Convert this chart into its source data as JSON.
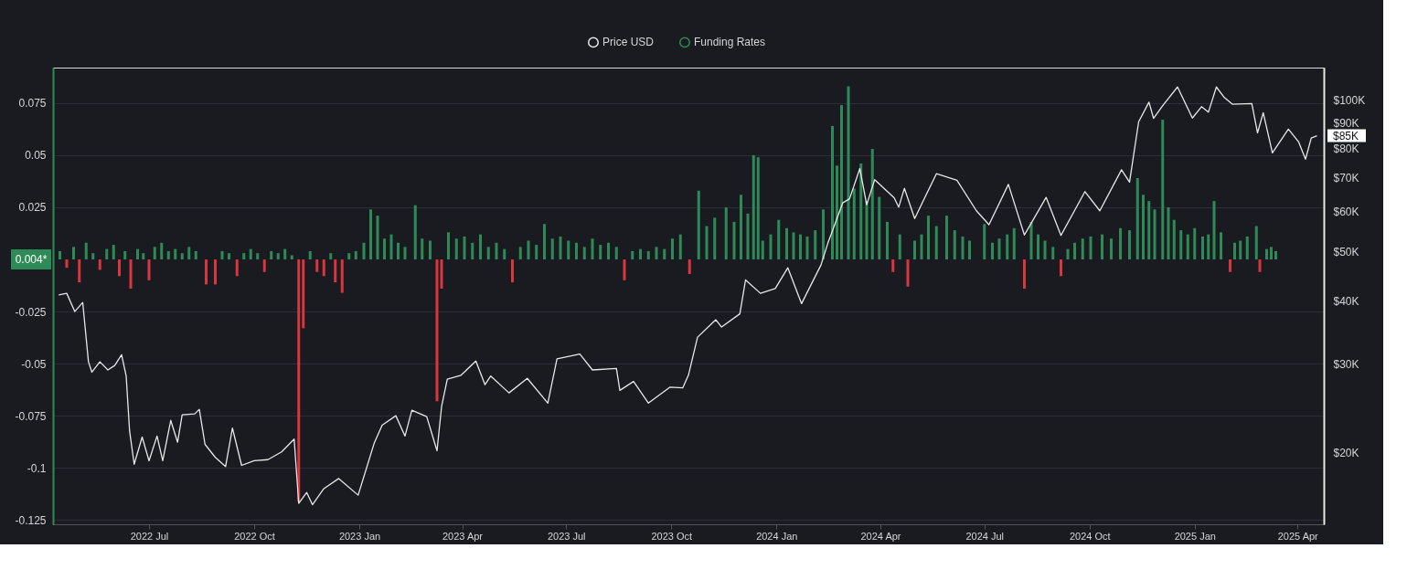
{
  "chart_data": {
    "type": "bar",
    "legend": "top",
    "grid": "y",
    "log": "y2",
    "annotations": [
      "0.004*",
      "$85K"
    ],
    "xlim": [
      "2022-04-12",
      "2025-04-20"
    ],
    "xticks": [
      {
        "value": "2022-07-01",
        "label": "2022 Jul"
      },
      {
        "value": "2022-10-01",
        "label": "2022 Oct"
      },
      {
        "value": "2023-01-01",
        "label": "2023 Jan"
      },
      {
        "value": "2023-04-01",
        "label": "2023 Apr"
      },
      {
        "value": "2023-07-01",
        "label": "2023 Jul"
      },
      {
        "value": "2023-10-01",
        "label": "2023 Oct"
      },
      {
        "value": "2024-01-01",
        "label": "2024 Jan"
      },
      {
        "value": "2024-04-01",
        "label": "2024 Apr"
      },
      {
        "value": "2024-07-01",
        "label": "2024 Jul"
      },
      {
        "value": "2024-10-01",
        "label": "2024 Oct"
      },
      {
        "value": "2025-01-01",
        "label": "2025 Jan"
      },
      {
        "value": "2025-04-01",
        "label": "2025 Apr"
      }
    ],
    "ylim": [
      -0.127,
      0.092
    ],
    "yticks": [
      -0.125,
      -0.1,
      -0.075,
      -0.05,
      -0.025,
      0.025,
      0.05,
      0.075
    ],
    "y2lim": [
      14450,
      115800
    ],
    "y2ticks": [
      {
        "value": 20000,
        "label": "$20K"
      },
      {
        "value": 30000,
        "label": "$30K"
      },
      {
        "value": 40000,
        "label": "$40K"
      },
      {
        "value": 50000,
        "label": "$50K"
      },
      {
        "value": 60000,
        "label": "$60K"
      },
      {
        "value": 70000,
        "label": "$70K"
      },
      {
        "value": 80000,
        "label": "$80K"
      },
      {
        "value": 90000,
        "label": "$90K"
      },
      {
        "value": 100000,
        "label": "$100K"
      }
    ],
    "series": [
      {
        "name": "Price USD",
        "type": "line",
        "axis": "y2",
        "color": "#e8e8e8",
        "x": [
          "2022-04-13",
          "2022-04-20",
          "2022-04-27",
          "2022-05-04",
          "2022-05-09",
          "2022-05-12",
          "2022-05-19",
          "2022-05-26",
          "2022-06-01",
          "2022-06-07",
          "2022-06-11",
          "2022-06-14",
          "2022-06-18",
          "2022-06-25",
          "2022-07-01",
          "2022-07-08",
          "2022-07-13",
          "2022-07-20",
          "2022-07-26",
          "2022-07-30",
          "2022-08-10",
          "2022-08-14",
          "2022-08-19",
          "2022-08-28",
          "2022-09-06",
          "2022-09-12",
          "2022-09-20",
          "2022-10-01",
          "2022-10-13",
          "2022-10-25",
          "2022-11-05",
          "2022-11-09",
          "2022-11-16",
          "2022-11-21",
          "2022-12-01",
          "2022-12-14",
          "2022-12-31",
          "2023-01-14",
          "2023-01-21",
          "2023-02-02",
          "2023-02-10",
          "2023-02-16",
          "2023-03-01",
          "2023-03-10",
          "2023-03-14",
          "2023-03-19",
          "2023-03-31",
          "2023-04-13",
          "2023-04-21",
          "2023-04-26",
          "2023-05-12",
          "2023-05-28",
          "2023-06-15",
          "2023-06-23",
          "2023-07-13",
          "2023-07-24",
          "2023-08-14",
          "2023-08-17",
          "2023-08-29",
          "2023-09-11",
          "2023-09-30",
          "2023-10-11",
          "2023-10-16",
          "2023-10-24",
          "2023-11-09",
          "2023-11-14",
          "2023-11-30",
          "2023-12-05",
          "2023-12-18",
          "2023-12-31",
          "2024-01-11",
          "2024-01-23",
          "2024-02-09",
          "2024-02-15",
          "2024-02-28",
          "2024-03-05",
          "2024-03-14",
          "2024-03-20",
          "2024-03-27",
          "2024-04-13",
          "2024-04-17",
          "2024-04-22",
          "2024-05-01",
          "2024-05-20",
          "2024-06-07",
          "2024-06-24",
          "2024-07-05",
          "2024-07-22",
          "2024-08-05",
          "2024-08-24",
          "2024-09-06",
          "2024-09-27",
          "2024-10-10",
          "2024-10-29",
          "2024-11-05",
          "2024-11-13",
          "2024-11-22",
          "2024-11-26",
          "2024-12-05",
          "2024-12-17",
          "2024-12-30",
          "2025-01-07",
          "2025-01-13",
          "2025-01-20",
          "2025-01-27",
          "2025-02-03",
          "2025-02-20",
          "2025-02-25",
          "2025-03-02",
          "2025-03-10",
          "2025-03-24",
          "2025-04-02",
          "2025-04-08",
          "2025-04-13",
          "2025-04-18"
        ],
        "values": [
          41100,
          41400,
          38100,
          39700,
          30300,
          28900,
          30300,
          29200,
          29800,
          31300,
          28400,
          22100,
          19000,
          21500,
          19300,
          21600,
          19300,
          23200,
          21000,
          23800,
          23900,
          24400,
          20800,
          19600,
          18800,
          22400,
          18900,
          19300,
          19400,
          20100,
          21300,
          15900,
          16700,
          15800,
          17000,
          17800,
          16500,
          20900,
          22700,
          23700,
          21600,
          24300,
          23600,
          20200,
          24700,
          28000,
          28500,
          30400,
          27300,
          28400,
          26300,
          28100,
          25100,
          30700,
          31400,
          29200,
          29400,
          26600,
          27700,
          25100,
          27000,
          26900,
          28500,
          33900,
          36700,
          35500,
          37700,
          44000,
          41400,
          42300,
          46500,
          39500,
          47100,
          52000,
          62500,
          63700,
          73100,
          62000,
          69500,
          64000,
          61300,
          66800,
          58200,
          71400,
          69300,
          60300,
          56600,
          68000,
          54000,
          64100,
          53900,
          65800,
          60300,
          72700,
          68700,
          90500,
          98900,
          91900,
          98000,
          106000,
          92000,
          96900,
          94500,
          106000,
          101000,
          98000,
          98300,
          86000,
          94300,
          78500,
          87500,
          82500,
          76300,
          84000,
          84900
        ]
      },
      {
        "name": "Funding Rates",
        "color": "#2e8b57",
        "x": [
          "2022-04-14",
          "2022-04-26",
          "2022-05-07",
          "2022-05-13",
          "2022-05-25",
          "2022-05-31",
          "2022-06-10",
          "2022-06-21",
          "2022-06-26",
          "2022-07-06",
          "2022-07-12",
          "2022-07-18",
          "2022-07-24",
          "2022-07-30",
          "2022-08-05",
          "2022-08-11",
          "2022-09-03",
          "2022-09-09",
          "2022-09-22",
          "2022-09-28",
          "2022-10-04",
          "2022-10-16",
          "2022-10-22",
          "2022-10-28",
          "2022-11-03",
          "2022-11-19",
          "2022-12-07",
          "2022-12-23",
          "2022-12-29",
          "2023-01-05",
          "2023-01-11",
          "2023-01-17",
          "2023-01-23",
          "2023-01-29",
          "2023-02-04",
          "2023-02-10",
          "2023-02-19",
          "2023-02-25",
          "2023-03-04",
          "2023-03-20",
          "2023-03-27",
          "2023-04-03",
          "2023-04-10",
          "2023-04-17",
          "2023-04-24",
          "2023-05-01",
          "2023-05-08",
          "2023-05-22",
          "2023-05-29",
          "2023-06-05",
          "2023-06-12",
          "2023-06-19",
          "2023-06-26",
          "2023-07-03",
          "2023-07-10",
          "2023-07-17",
          "2023-07-24",
          "2023-07-31",
          "2023-08-07",
          "2023-08-14",
          "2023-08-28",
          "2023-09-04",
          "2023-09-11",
          "2023-09-18",
          "2023-09-25",
          "2023-10-02",
          "2023-10-09",
          "2023-10-25",
          "2023-11-01",
          "2023-11-08",
          "2023-11-18",
          "2023-11-25",
          "2023-12-01",
          "2023-12-07",
          "2023-12-12",
          "2023-12-16",
          "2023-12-20",
          "2023-12-27",
          "2024-01-03",
          "2024-01-10",
          "2024-01-16",
          "2024-01-22",
          "2024-01-28",
          "2024-02-04",
          "2024-02-11",
          "2024-02-19",
          "2024-02-23",
          "2024-02-27",
          "2024-03-04",
          "2024-03-09",
          "2024-03-15",
          "2024-03-20",
          "2024-03-25",
          "2024-03-31",
          "2024-04-07",
          "2024-04-18",
          "2024-05-01",
          "2024-05-07",
          "2024-05-13",
          "2024-05-20",
          "2024-05-29",
          "2024-06-05",
          "2024-06-12",
          "2024-06-18",
          "2024-07-01",
          "2024-07-08",
          "2024-07-14",
          "2024-07-21",
          "2024-07-27",
          "2024-08-11",
          "2024-08-17",
          "2024-08-23",
          "2024-08-30",
          "2024-09-12",
          "2024-09-18",
          "2024-09-25",
          "2024-10-02",
          "2024-10-12",
          "2024-10-20",
          "2024-10-28",
          "2024-11-05",
          "2024-11-12",
          "2024-11-17",
          "2024-11-22",
          "2024-11-27",
          "2024-12-04",
          "2024-12-09",
          "2024-12-14",
          "2024-12-20",
          "2024-12-26",
          "2025-01-01",
          "2025-01-08",
          "2025-01-13",
          "2025-01-18",
          "2025-01-24",
          "2025-02-05",
          "2025-02-10",
          "2025-02-16",
          "2025-02-24",
          "2025-03-05",
          "2025-03-09",
          "2025-03-13"
        ],
        "values": [
          0.004,
          0.006,
          0.008,
          0.003,
          0.005,
          0.007,
          0.004,
          0.005,
          0.003,
          0.006,
          0.008,
          0.004,
          0.005,
          0.003,
          0.006,
          0.004,
          0.004,
          0.003,
          0.003,
          0.005,
          0.003,
          0.004,
          0.003,
          0.005,
          0.002,
          0.004,
          0.003,
          0.003,
          0.004,
          0.008,
          0.024,
          0.021,
          0.01,
          0.012,
          0.008,
          0.006,
          0.026,
          0.01,
          0.009,
          0.013,
          0.01,
          0.011,
          0.008,
          0.012,
          0.006,
          0.008,
          0.005,
          0.006,
          0.009,
          0.007,
          0.017,
          0.01,
          0.011,
          0.009,
          0.008,
          0.006,
          0.01,
          0.007,
          0.008,
          0.006,
          0.004,
          0.005,
          0.004,
          0.006,
          0.005,
          0.01,
          0.012,
          0.033,
          0.016,
          0.02,
          0.025,
          0.018,
          0.031,
          0.022,
          0.05,
          0.049,
          0.009,
          0.012,
          0.019,
          0.015,
          0.013,
          0.012,
          0.011,
          0.014,
          0.024,
          0.064,
          0.045,
          0.074,
          0.083,
          0.034,
          0.046,
          0.028,
          0.053,
          0.03,
          0.018,
          0.012,
          0.009,
          0.012,
          0.021,
          0.016,
          0.021,
          0.014,
          0.011,
          0.009,
          0.017,
          0.008,
          0.01,
          0.012,
          0.015,
          0.018,
          0.012,
          0.009,
          0.006,
          0.005,
          0.008,
          0.01,
          0.011,
          0.012,
          0.01,
          0.015,
          0.014,
          0.039,
          0.031,
          0.028,
          0.024,
          0.067,
          0.025,
          0.019,
          0.014,
          0.012,
          0.015,
          0.011,
          0.012,
          0.028,
          0.013,
          0.008,
          0.009,
          0.011,
          0.016,
          0.005,
          0.006,
          0.004
        ]
      },
      {
        "color": "#d9363e",
        "x": [
          "2022-04-20",
          "2022-05-01",
          "2022-05-19",
          "2022-06-05",
          "2022-06-15",
          "2022-07-01",
          "2022-08-20",
          "2022-08-28",
          "2022-09-16",
          "2022-10-10",
          "2022-11-09",
          "2022-11-13",
          "2022-11-25",
          "2022-12-01",
          "2022-12-11",
          "2022-12-17",
          "2023-03-10",
          "2023-03-14",
          "2023-05-15",
          "2023-08-21",
          "2023-10-17",
          "2024-04-12",
          "2024-04-25",
          "2024-08-05",
          "2024-09-06",
          "2025-02-01",
          "2025-02-27"
        ],
        "values": [
          -0.004,
          -0.011,
          -0.005,
          -0.008,
          -0.014,
          -0.01,
          -0.012,
          -0.012,
          -0.008,
          -0.006,
          -0.116,
          -0.033,
          -0.006,
          -0.008,
          -0.011,
          -0.016,
          -0.068,
          -0.014,
          -0.011,
          -0.01,
          -0.007,
          -0.006,
          -0.013,
          -0.014,
          -0.008,
          -0.006,
          -0.006
        ]
      }
    ]
  }
}
